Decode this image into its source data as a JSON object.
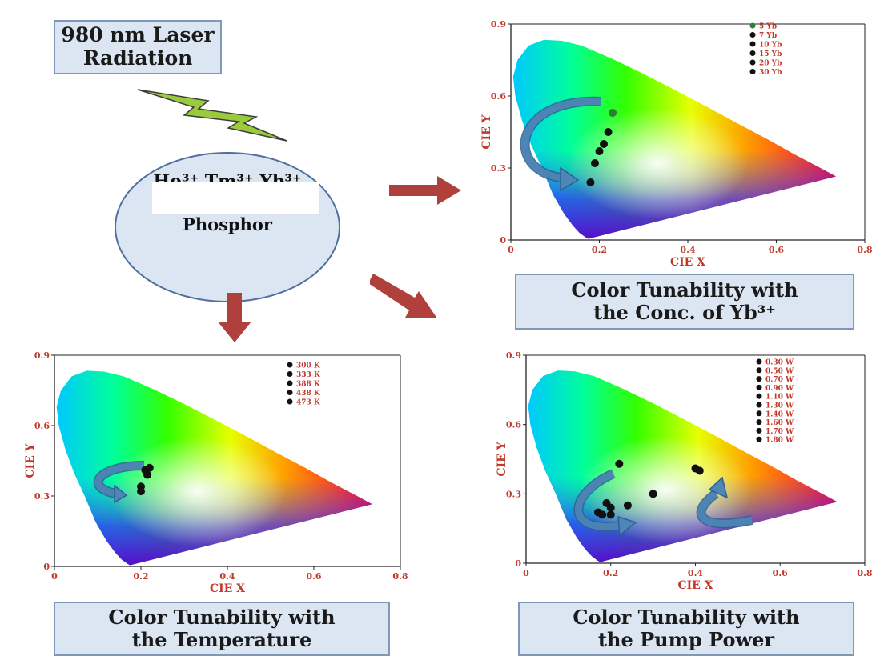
{
  "laser_box": {
    "line1": "980 nm Laser",
    "line2": "Radiation"
  },
  "phosphor": {
    "formula": "Ho³⁺,Tm³⁺,Yb³⁺",
    "label": "Phosphor"
  },
  "captions": {
    "conc": {
      "line1": "Color Tunability with",
      "line2": "the Conc. of Yb³⁺"
    },
    "temp": {
      "line1": "Color Tunability with",
      "line2": "the Temperature"
    },
    "pump": {
      "line1": "Color Tunability with",
      "line2": "the Pump Power"
    }
  },
  "colors": {
    "arrow": "#b0403c",
    "bolt": "#9acb3c",
    "curved_arrow": "#4f86b8",
    "axis_label": "#c0392b",
    "box_fill": "#dce6f2",
    "box_border": "#7f98b8"
  },
  "chart_data": [
    {
      "type": "scatter",
      "id": "conc",
      "xlabel": "CIE X",
      "ylabel": "CIE Y",
      "xlim": [
        0,
        0.8
      ],
      "ylim": [
        0,
        0.9
      ],
      "xticks": [
        "0",
        "0.2",
        "0.4",
        "0.6",
        "0.8"
      ],
      "yticks": [
        "0",
        "0.3",
        "0.6",
        "0.9"
      ],
      "legend_position": "top-right",
      "series": [
        {
          "name": "5 Yb",
          "x": 0.23,
          "y": 0.53,
          "color": "#2e7d32"
        },
        {
          "name": "7 Yb",
          "x": 0.22,
          "y": 0.45,
          "color": "#111111"
        },
        {
          "name": "10 Yb",
          "x": 0.21,
          "y": 0.4,
          "color": "#111111"
        },
        {
          "name": "15 Yb",
          "x": 0.2,
          "y": 0.37,
          "color": "#111111"
        },
        {
          "name": "20 Yb",
          "x": 0.19,
          "y": 0.32,
          "color": "#111111"
        },
        {
          "name": "30 Yb",
          "x": 0.18,
          "y": 0.24,
          "color": "#111111"
        }
      ]
    },
    {
      "type": "scatter",
      "id": "temp",
      "xlabel": "CIE X",
      "ylabel": "CIE Y",
      "xlim": [
        0,
        0.8
      ],
      "ylim": [
        0,
        0.9
      ],
      "xticks": [
        "0",
        "0.2",
        "0.4",
        "0.6",
        "0.8"
      ],
      "yticks": [
        "0",
        "0.3",
        "0.6",
        "0.9"
      ],
      "legend_position": "top-right",
      "series": [
        {
          "name": "300 K",
          "x": 0.22,
          "y": 0.42,
          "color": "#111111"
        },
        {
          "name": "333 K",
          "x": 0.21,
          "y": 0.41,
          "color": "#111111"
        },
        {
          "name": "388 K",
          "x": 0.215,
          "y": 0.39,
          "color": "#111111"
        },
        {
          "name": "438 K",
          "x": 0.2,
          "y": 0.34,
          "color": "#111111"
        },
        {
          "name": "473 K",
          "x": 0.2,
          "y": 0.32,
          "color": "#111111"
        }
      ]
    },
    {
      "type": "scatter",
      "id": "pump",
      "xlabel": "CIE X",
      "ylabel": "CIE Y",
      "xlim": [
        0,
        0.8
      ],
      "ylim": [
        0,
        0.9
      ],
      "xticks": [
        "0",
        "0.2",
        "0.4",
        "0.6",
        "0.8"
      ],
      "yticks": [
        "0",
        "0.3",
        "0.6",
        "0.9"
      ],
      "legend_position": "top-right",
      "series": [
        {
          "name": "0.30 W",
          "x": 0.22,
          "y": 0.43,
          "color": "#111111"
        },
        {
          "name": "0.50 W",
          "x": 0.3,
          "y": 0.3,
          "color": "#111111"
        },
        {
          "name": "0.70 W",
          "x": 0.24,
          "y": 0.25,
          "color": "#111111"
        },
        {
          "name": "0.90 W",
          "x": 0.19,
          "y": 0.26,
          "color": "#111111"
        },
        {
          "name": "1.10 W",
          "x": 0.2,
          "y": 0.24,
          "color": "#111111"
        },
        {
          "name": "1.30 W",
          "x": 0.17,
          "y": 0.22,
          "color": "#111111"
        },
        {
          "name": "1.40 W",
          "x": 0.18,
          "y": 0.21,
          "color": "#111111"
        },
        {
          "name": "1.60 W",
          "x": 0.2,
          "y": 0.21,
          "color": "#111111"
        },
        {
          "name": "1.70 W",
          "x": 0.4,
          "y": 0.41,
          "color": "#111111"
        },
        {
          "name": "1.80 W",
          "x": 0.41,
          "y": 0.4,
          "color": "#111111"
        }
      ]
    }
  ]
}
